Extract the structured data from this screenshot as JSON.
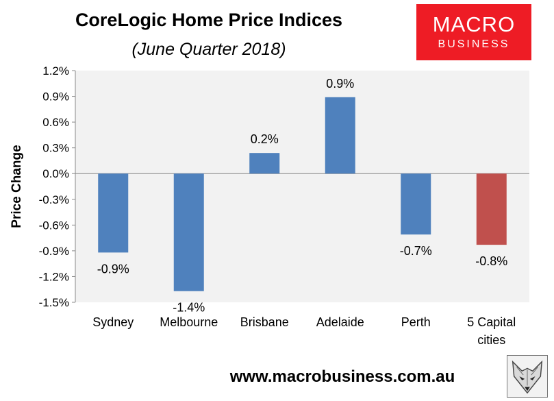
{
  "title": "CoreLogic Home Price Indices",
  "subtitle": "(June Quarter 2018)",
  "logo": {
    "line1": "MACRO",
    "line2": "BUSINESS"
  },
  "footer_url": "www.macrobusiness.com.au",
  "colors": {
    "bar": "#4f81bd",
    "highlight": "#c0504d",
    "plot_bg": "#f2f2f2",
    "grid": "#d9d9d9"
  },
  "chart_data": {
    "type": "bar",
    "title": "CoreLogic Home Price Indices",
    "subtitle": "(June Quarter 2018)",
    "xlabel": "",
    "ylabel": "Price Change",
    "categories": [
      "Sydney",
      "Melbourne",
      "Brisbane",
      "Adelaide",
      "Perth",
      "5 Capital cities"
    ],
    "category_labels": [
      [
        "Sydney"
      ],
      [
        "Melbourne"
      ],
      [
        "Brisbane"
      ],
      [
        "Adelaide"
      ],
      [
        "Perth"
      ],
      [
        "5 Capital",
        "cities"
      ]
    ],
    "values": [
      -0.9,
      -1.4,
      0.2,
      0.9,
      -0.7,
      -0.8
    ],
    "bar_values": [
      -0.92,
      -1.37,
      0.24,
      0.89,
      -0.71,
      -0.83
    ],
    "data_labels": [
      "-0.9%",
      "-1.4%",
      "0.2%",
      "0.9%",
      "-0.7%",
      "-0.8%"
    ],
    "highlight_index": 5,
    "ylim": [
      -1.5,
      1.2
    ],
    "yticks": [
      1.2,
      0.9,
      0.6,
      0.3,
      0.0,
      -0.3,
      -0.6,
      -0.9,
      -1.2,
      -1.5
    ],
    "ytick_labels": [
      "1.2%",
      "0.9%",
      "0.6%",
      "0.3%",
      "0.0%",
      "-0.3%",
      "-0.6%",
      "-0.9%",
      "-1.2%",
      "-1.5%"
    ],
    "grid": false,
    "legend": "none"
  }
}
